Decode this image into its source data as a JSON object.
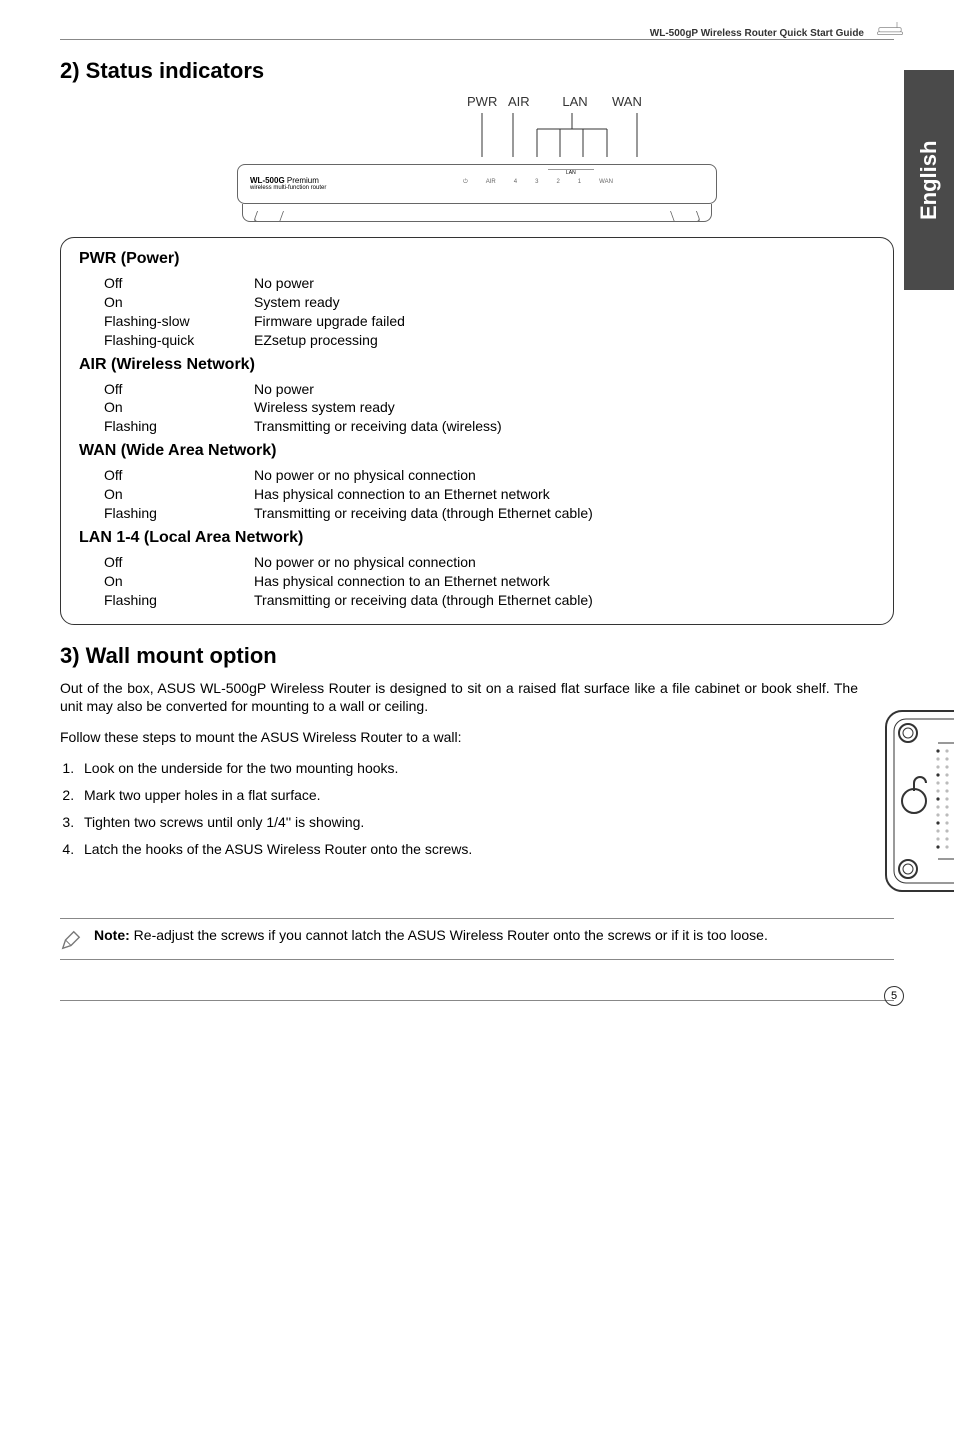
{
  "header": {
    "title": "WL-500gP Wireless Router Quick Start Guide"
  },
  "side_tab": "English",
  "section2": {
    "title": "2) Status indicators",
    "diagram": {
      "labels": {
        "pwr": "PWR",
        "air": "AIR",
        "lan": "LAN",
        "wan": "WAN"
      },
      "brand": "WL-500G",
      "brand_suffix": "Premium",
      "brand_sub": "wireless multi-function router",
      "led_small": {
        "pwr": "⏻",
        "air": "AIR",
        "l4": "4",
        "l3": "3",
        "l2": "2",
        "l1": "1",
        "wan": "WAN"
      },
      "lan_small": "LAN"
    },
    "groups": [
      {
        "heading": "PWR (Power)",
        "rows": [
          {
            "state": "Off",
            "desc": "No power"
          },
          {
            "state": "On",
            "desc": "System ready"
          },
          {
            "state": "Flashing-slow",
            "desc": "Firmware upgrade failed"
          },
          {
            "state": "Flashing-quick",
            "desc": "EZsetup processing"
          }
        ]
      },
      {
        "heading": "AIR (Wireless Network)",
        "rows": [
          {
            "state": "Off",
            "desc": "No power"
          },
          {
            "state": "On",
            "desc": "Wireless system ready"
          },
          {
            "state": "Flashing",
            "desc": "Transmitting or receiving data (wireless)"
          }
        ]
      },
      {
        "heading": "WAN (Wide Area Network)",
        "rows": [
          {
            "state": "Off",
            "desc": "No power or no physical connection"
          },
          {
            "state": "On",
            "desc": "Has physical connection to an Ethernet network"
          },
          {
            "state": "Flashing",
            "desc": "Transmitting or receiving data (through Ethernet cable)"
          }
        ]
      },
      {
        "heading": "LAN 1-4 (Local Area Network)",
        "rows": [
          {
            "state": "Off",
            "desc": "No power or no physical connection"
          },
          {
            "state": "On",
            "desc": "Has physical connection to an Ethernet network"
          },
          {
            "state": "Flashing",
            "desc": "Transmitting or receiving data (through Ethernet cable)"
          }
        ]
      }
    ]
  },
  "section3": {
    "title": "3) Wall mount option",
    "p1": "Out of the box, ASUS WL-500gP Wireless Router is designed to sit on a raised flat surface like a file cabinet or book shelf. The unit may also be converted for mounting to a wall or ceiling.",
    "p2": "Follow these steps to mount the ASUS Wireless Router to a wall:",
    "steps": [
      "Look on the underside for the two mounting hooks.",
      "Mark two upper holes in a flat surface.",
      "Tighten two screws until only 1/4'' is showing.",
      "Latch the hooks of the ASUS Wireless Router onto the screws."
    ]
  },
  "note": {
    "label": "Note:",
    "text": " Re-adjust the screws if you cannot latch the ASUS Wireless Router onto the screws or if it is too loose."
  },
  "page_number": "5",
  "colors": {
    "tab_bg": "#4a4a4a",
    "border": "#333333"
  }
}
